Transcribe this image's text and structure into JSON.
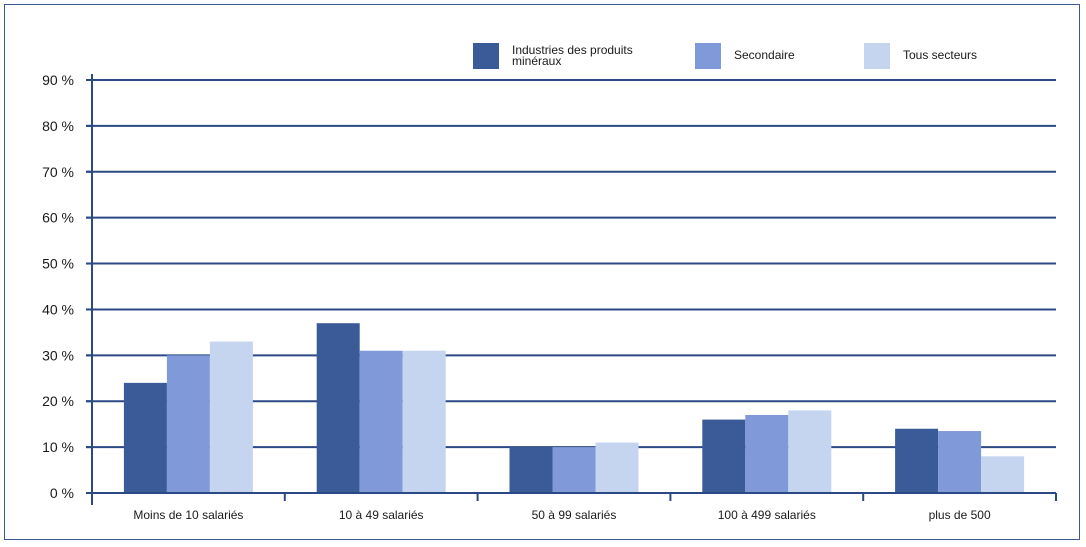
{
  "chart_data": {
    "type": "bar",
    "categories": [
      "Moins de 10 salariés",
      "10 à 49 salariés",
      "50 à 99 salariés",
      "100 à 499 salariés",
      "plus de 500"
    ],
    "series": [
      {
        "name": "Industries des produits minéraux",
        "legend_lines": [
          "Industries des produits",
          "minéraux"
        ],
        "color": "#3a5a98",
        "values": [
          24,
          37,
          10,
          16,
          14
        ]
      },
      {
        "name": "Secondaire",
        "legend_lines": [
          "Secondaire"
        ],
        "color": "#7f99d9",
        "values": [
          30,
          31,
          10,
          17,
          13.5
        ]
      },
      {
        "name": "Tous secteurs",
        "legend_lines": [
          "Tous secteurs"
        ],
        "color": "#c5d5f0",
        "values": [
          33,
          31,
          11,
          18,
          8
        ]
      }
    ],
    "yticks": [
      "0 %",
      "10 %",
      "20 %",
      "30 %",
      "40 %",
      "50 %",
      "60 %",
      "70 %",
      "80 %",
      "90 %"
    ],
    "ylim": [
      0,
      90
    ],
    "grid": true,
    "legend_position": "top-right",
    "title": "",
    "xlabel": "",
    "ylabel": ""
  }
}
